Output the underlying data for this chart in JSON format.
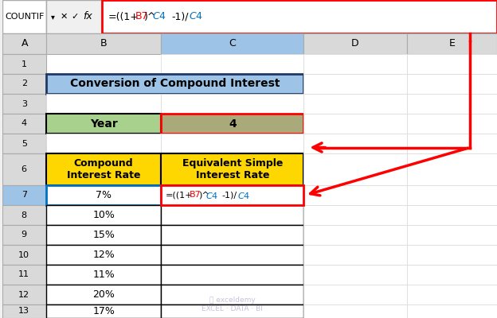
{
  "title": "Conversion of Compound Interest",
  "formula_bar_text": "=((1+B7)^$C$4-1)/$C$4",
  "cell_ref": "COUNTIF",
  "col_headers": [
    "A",
    "B",
    "C",
    "D",
    "E"
  ],
  "row_numbers": [
    "1",
    "2",
    "3",
    "4",
    "5",
    "6",
    "7",
    "8",
    "9",
    "10",
    "11",
    "12",
    "13"
  ],
  "year_label": "Year",
  "year_value": "4",
  "header1": "Compound\nInterest Rate",
  "header2": "Equivalent Simple\nInterest Rate",
  "compound_rates": [
    "7%",
    "10%",
    "15%",
    "12%",
    "11%",
    "20%",
    "17%"
  ],
  "formula_cell_text": "=((1+B7)^$C$4-1)/$C$4",
  "colors": {
    "title_bg": "#9DC3E6",
    "title_border": "#1F3864",
    "year_label_bg": "#A9D18E",
    "year_label_border": "#000000",
    "year_value_bg": "#A9A97A",
    "year_value_border": "#FF0000",
    "header_bg": "#FFD700",
    "header_border": "#000000",
    "table_bg": "#FFFFFF",
    "table_border": "#000000",
    "formula_cell_border": "#FF0000",
    "formula_cell_bg": "#FFFFFF",
    "formula_bar_bg": "#FFFFFF",
    "formula_bar_border": "#FF0000",
    "row7_b_border": "#0070C0",
    "spreadsheet_bg": "#FFFFFF",
    "header_row_bg": "#D9D9D9",
    "col_header_bg": "#D9D9D9",
    "arrow_color": "#FF0000",
    "formula_text_color": "#000000",
    "formula_b7_color": "#FF0000",
    "formula_c4_color": "#0070C0"
  },
  "figsize": [
    6.24,
    4.0
  ],
  "dpi": 100
}
